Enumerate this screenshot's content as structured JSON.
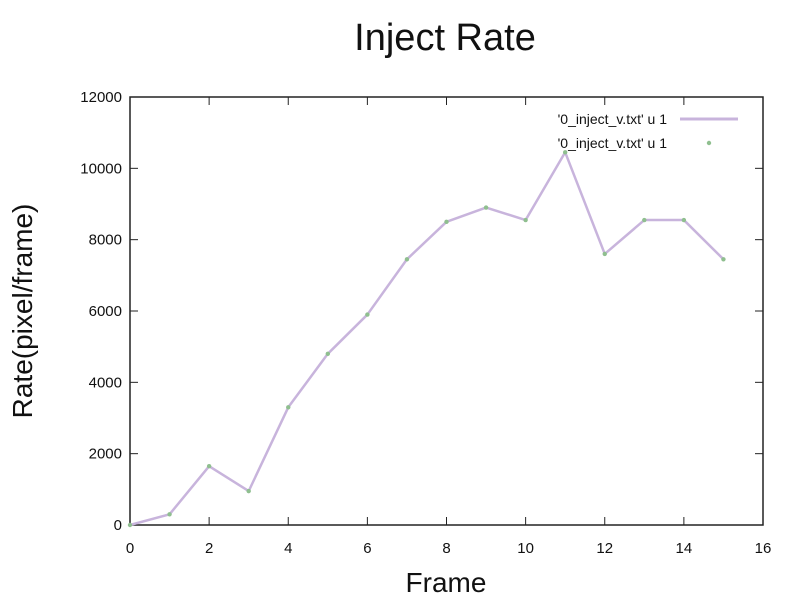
{
  "chart_data": {
    "type": "line",
    "title": "Inject Rate",
    "xlabel": "Frame",
    "ylabel": "Rate(pixel/frame)",
    "xlim": [
      0,
      16
    ],
    "ylim": [
      0,
      12000
    ],
    "xticks": [
      0,
      2,
      4,
      6,
      8,
      10,
      12,
      14,
      16
    ],
    "yticks": [
      0,
      2000,
      4000,
      6000,
      8000,
      10000,
      12000
    ],
    "grid": false,
    "legend_position": "top-right",
    "series": [
      {
        "name": "'0_inject_v.txt' u 1",
        "style": "lines",
        "color": "#c8b4dc",
        "x": [
          0,
          1,
          2,
          3,
          4,
          5,
          6,
          7,
          8,
          9,
          10,
          11,
          12,
          13,
          14,
          15
        ],
        "y": [
          0,
          300,
          1650,
          950,
          3300,
          4800,
          5900,
          7450,
          8500,
          8900,
          8550,
          10450,
          7600,
          8550,
          8550,
          7450
        ]
      },
      {
        "name": "'0_inject_v.txt' u 1",
        "style": "points",
        "color": "#8fbf8f",
        "x": [
          0,
          1,
          2,
          3,
          4,
          5,
          6,
          7,
          8,
          9,
          10,
          11,
          12,
          13,
          14,
          15
        ],
        "y": [
          0,
          300,
          1650,
          950,
          3300,
          4800,
          5900,
          7450,
          8500,
          8900,
          8550,
          10450,
          7600,
          8550,
          8550,
          7450
        ]
      }
    ]
  }
}
